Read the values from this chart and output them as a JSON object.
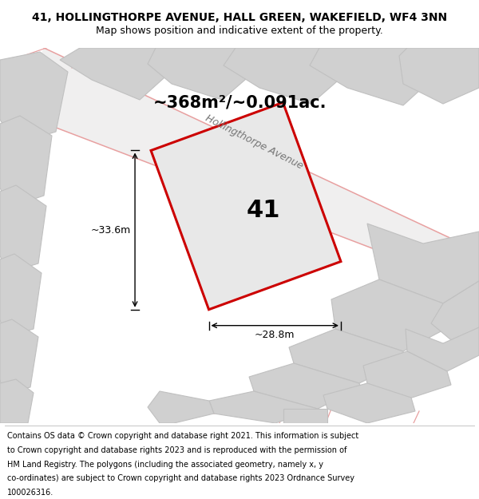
{
  "title_line1": "41, HOLLINGTHORPE AVENUE, HALL GREEN, WAKEFIELD, WF4 3NN",
  "title_line2": "Map shows position and indicative extent of the property.",
  "area_text": "~368m²/~0.091ac.",
  "property_number": "41",
  "dim_vertical": "~33.6m",
  "dim_horizontal": "~28.8m",
  "street_label": "Hollingthorpe Avenue",
  "footer_lines": [
    "Contains OS data © Crown copyright and database right 2021. This information is subject",
    "to Crown copyright and database rights 2023 and is reproduced with the permission of",
    "HM Land Registry. The polygons (including the associated geometry, namely x, y",
    "co-ordinates) are subject to Crown copyright and database rights 2023 Ordnance Survey",
    "100026316."
  ],
  "bg_color": "#e8e8e8",
  "building_fill": "#d0d0d0",
  "building_edge": "#c0c0c0",
  "plot_fill": "#e8e8e8",
  "plot_edge": "#cc0000",
  "plot_linewidth": 2.2,
  "street_line_color": "#e8a0a0",
  "title_fontsize": 10,
  "subtitle_fontsize": 9,
  "area_fontsize": 15,
  "number_fontsize": 22,
  "dim_fontsize": 9,
  "street_fontsize": 9,
  "footer_fontsize": 7
}
